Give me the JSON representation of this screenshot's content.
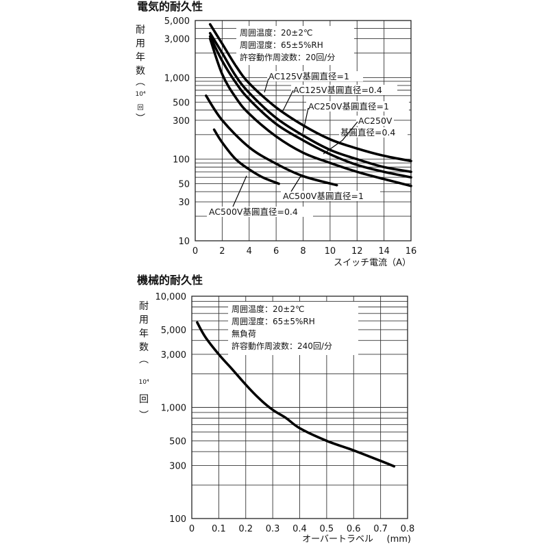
{
  "chart_data": [
    {
      "type": "line",
      "title": "電気的耐久性",
      "ylabel_chars": [
        "耐",
        "用",
        "年",
        "数"
      ],
      "ylabel_paren_open": "︵",
      "ylabel_unit": "10⁴",
      "ylabel_unit_char": "回",
      "ylabel_paren_close": "︶",
      "xlabel": "スイッチ電流（A）",
      "xlim": [
        0,
        16
      ],
      "ylim": [
        10,
        5000
      ],
      "yscale": "log",
      "xticks": [
        0,
        2,
        4,
        6,
        8,
        10,
        12,
        14,
        16
      ],
      "xtick_labels": [
        "0",
        "2",
        "4",
        "6",
        "8",
        "10",
        "12",
        "14",
        "16"
      ],
      "yticks": [
        10,
        30,
        50,
        100,
        300,
        500,
        1000,
        3000,
        5000
      ],
      "ytick_labels": [
        "10",
        "30",
        "50",
        "100",
        "300",
        "500",
        "1,000",
        "3,000",
        "5,000"
      ],
      "conditions": [
        "周囲温度：20±2℃",
        "周囲湿度：65±5%RH",
        "許容動作周波数：20回/分"
      ],
      "series": [
        {
          "name": "AC125V基圓直径=1",
          "x": [
            1.1,
            2,
            3,
            4,
            6,
            8,
            10,
            12,
            14,
            16
          ],
          "y": [
            4500,
            2600,
            1400,
            850,
            430,
            260,
            175,
            135,
            110,
            95
          ]
        },
        {
          "name": "AC125V基圓直径=0.4",
          "x": [
            1.1,
            2,
            3,
            4,
            6,
            8,
            10,
            12,
            14,
            16
          ],
          "y": [
            3500,
            2000,
            1050,
            650,
            320,
            195,
            130,
            100,
            80,
            70
          ]
        },
        {
          "name": "AC250V基圓直径=1",
          "x": [
            1.1,
            2,
            3,
            4,
            6,
            8,
            10,
            12,
            14,
            16
          ],
          "y": [
            3200,
            1600,
            870,
            540,
            270,
            170,
            115,
            85,
            70,
            60
          ]
        },
        {
          "name": "AC250V基圓直径=0.4",
          "x": [
            1.1,
            2,
            3,
            4,
            6,
            8,
            10,
            12,
            14,
            16
          ],
          "y": [
            3000,
            1100,
            570,
            360,
            190,
            120,
            90,
            70,
            57,
            47
          ]
        },
        {
          "name": "AC500V基圓直径=1",
          "x": [
            0.8,
            2,
            4,
            6,
            8,
            10.5
          ],
          "y": [
            600,
            300,
            140,
            88,
            62,
            48
          ]
        },
        {
          "name": "AC500V基圓直径=0.4",
          "x": [
            1.4,
            2,
            3,
            4,
            5,
            6.2
          ],
          "y": [
            230,
            160,
            100,
            75,
            60,
            50
          ]
        }
      ],
      "annotations": [
        "AC125V基圓直径=1",
        "AC125V基圓直径=0.4",
        "AC250V基圓直径=1",
        "AC250V",
        "基圓直径=0.4",
        "AC500V基圓直径=1",
        "AC500V基圓直径=0.4"
      ]
    },
    {
      "type": "line",
      "title": "機械的耐久性",
      "ylabel_chars": [
        "耐",
        "用",
        "年",
        "数"
      ],
      "ylabel_paren_open": "︵",
      "ylabel_unit": "10⁴",
      "ylabel_unit_char": "回",
      "ylabel_paren_close": "︶",
      "xlabel": "オーバートラベル",
      "xlabel_unit": "(mm)",
      "xlim": [
        0,
        0.8
      ],
      "ylim": [
        100,
        10000
      ],
      "yscale": "log",
      "xticks": [
        0,
        0.1,
        0.2,
        0.3,
        0.4,
        0.5,
        0.6,
        0.7,
        0.8
      ],
      "xtick_labels": [
        "0",
        "0.1",
        "0.2",
        "0.3",
        "0.4",
        "0.5",
        "0.6",
        "0.7",
        "0.8"
      ],
      "yticks": [
        100,
        300,
        500,
        1000,
        3000,
        5000,
        10000
      ],
      "ytick_labels": [
        "100",
        "300",
        "500",
        "1,000",
        "3,000",
        "5,000",
        "10,000"
      ],
      "conditions": [
        "周囲温度：20±2℃",
        "周囲湿度：65±5%RH",
        "無負荷",
        "許容動作周波数：240回/分"
      ],
      "series": [
        {
          "name": "機械的耐久性",
          "x": [
            0.02,
            0.05,
            0.1,
            0.15,
            0.2,
            0.25,
            0.3,
            0.35,
            0.4,
            0.5,
            0.6,
            0.7,
            0.75
          ],
          "y": [
            5800,
            4300,
            3000,
            2200,
            1600,
            1200,
            950,
            800,
            650,
            500,
            410,
            330,
            295
          ]
        }
      ]
    }
  ]
}
